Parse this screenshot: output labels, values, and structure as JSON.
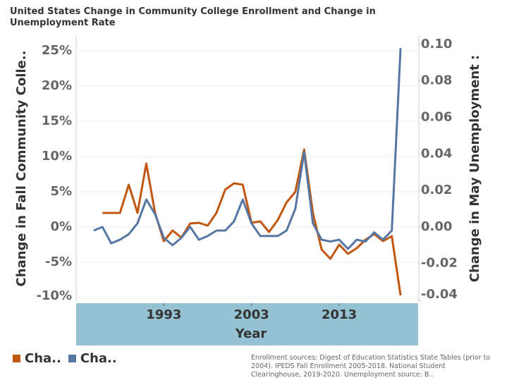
{
  "chart_data": {
    "type": "line",
    "title": "United States Change in Community College Enrollment and Change in Unemployment Rate",
    "x_label": "Year",
    "y_label": "Change in Fall Community Colle..",
    "y2_label": "Change in May Unemployment  :",
    "note": "Enrollment sources:  Digest of Education Statistics State Tables (prior to 2004). IPEDS Fall Enrollment 2005-2018. National Student Clearinghouse, 2019-2020.  Unemployment source: B..",
    "x": [
      1985,
      1986,
      1987,
      1988,
      1989,
      1990,
      1991,
      1992,
      1993,
      1994,
      1995,
      1996,
      1997,
      1998,
      1999,
      2000,
      2001,
      2002,
      2003,
      2004,
      2005,
      2006,
      2007,
      2008,
      2009,
      2010,
      2011,
      2012,
      2013,
      2014,
      2015,
      2016,
      2017,
      2018,
      2019,
      2020
    ],
    "xlim": [
      1983,
      2022
    ],
    "xticks": [
      1993,
      2003,
      2013
    ],
    "ylim": [
      -10.6,
      27.2
    ],
    "yticks": [
      {
        "value": 25,
        "label": "25%"
      },
      {
        "value": 20,
        "label": "20%"
      },
      {
        "value": 15,
        "label": "15%"
      },
      {
        "value": 10,
        "label": "10%"
      },
      {
        "value": 5,
        "label": "5%"
      },
      {
        "value": 0,
        "label": "0%"
      },
      {
        "value": -5,
        "label": "-5%"
      },
      {
        "value": -10,
        "label": "-10%"
      }
    ],
    "y2lim": [
      -0.041,
      0.105
    ],
    "y2ticks": [
      {
        "value": 0.1,
        "label": "0.10"
      },
      {
        "value": 0.08,
        "label": "0.08"
      },
      {
        "value": 0.06,
        "label": "0.06"
      },
      {
        "value": 0.04,
        "label": "0.04"
      },
      {
        "value": 0.02,
        "label": "0.02"
      },
      {
        "value": 0,
        "label": "0.00"
      },
      {
        "value": -0.02,
        "label": "-0.02"
      },
      {
        "value": -0.04,
        "label": "-0.04"
      }
    ],
    "grid": true,
    "legend": "bottom-left",
    "series": [
      {
        "name": "Cha..",
        "color": "#c1560f",
        "values": [
          null,
          2,
          2,
          2,
          6,
          2,
          9,
          2,
          -2,
          -0.5,
          -1.5,
          0.5,
          0.6,
          0.2,
          2,
          5.3,
          6.2,
          6,
          0.6,
          0.8,
          -0.7,
          1,
          3.5,
          5,
          11,
          2,
          -3.2,
          -4.5,
          -2.5,
          -3.8,
          -3,
          -1.8,
          -1,
          -2,
          -1.3,
          -9.7
        ]
      },
      {
        "name": "Cha..",
        "color": "#5677a4",
        "axis": "y2",
        "values": [
          -0.002,
          0,
          -0.009,
          -0.007,
          -0.004,
          0.002,
          0.015,
          0.007,
          -0.006,
          -0.01,
          -0.006,
          0,
          -0.007,
          -0.005,
          -0.002,
          -0.002,
          0.003,
          0.015,
          0.002,
          -0.005,
          -0.005,
          -0.005,
          -0.002,
          0.01,
          0.041,
          0.002,
          -0.007,
          -0.008,
          -0.007,
          -0.012,
          -0.007,
          -0.008,
          -0.003,
          -0.007,
          -0.002,
          0.098
        ]
      }
    ]
  }
}
